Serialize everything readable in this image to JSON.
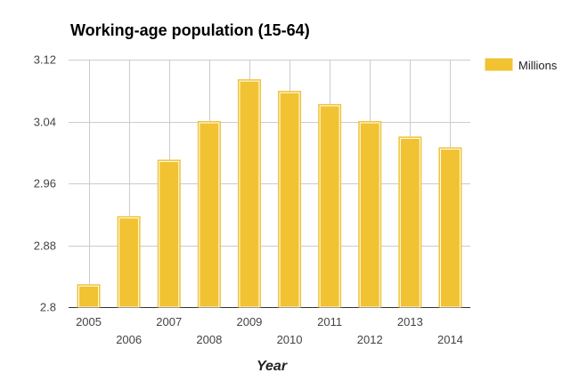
{
  "chart_data": {
    "type": "bar",
    "title": "Working-age population (15-64)",
    "xlabel": "Year",
    "ylabel": "",
    "categories": [
      "2005",
      "2006",
      "2007",
      "2008",
      "2009",
      "2010",
      "2011",
      "2012",
      "2013",
      "2014"
    ],
    "series": [
      {
        "name": "Millions",
        "values": [
          2.829,
          2.917,
          2.99,
          3.04,
          3.094,
          3.079,
          3.062,
          3.04,
          3.02,
          3.006
        ],
        "color": "#F1C232"
      }
    ],
    "ylim": [
      2.8,
      3.12
    ],
    "yticks": [
      "3.12",
      "3.04",
      "2.96",
      "2.88",
      "2.8"
    ],
    "grid": true,
    "legend_position": "right"
  }
}
